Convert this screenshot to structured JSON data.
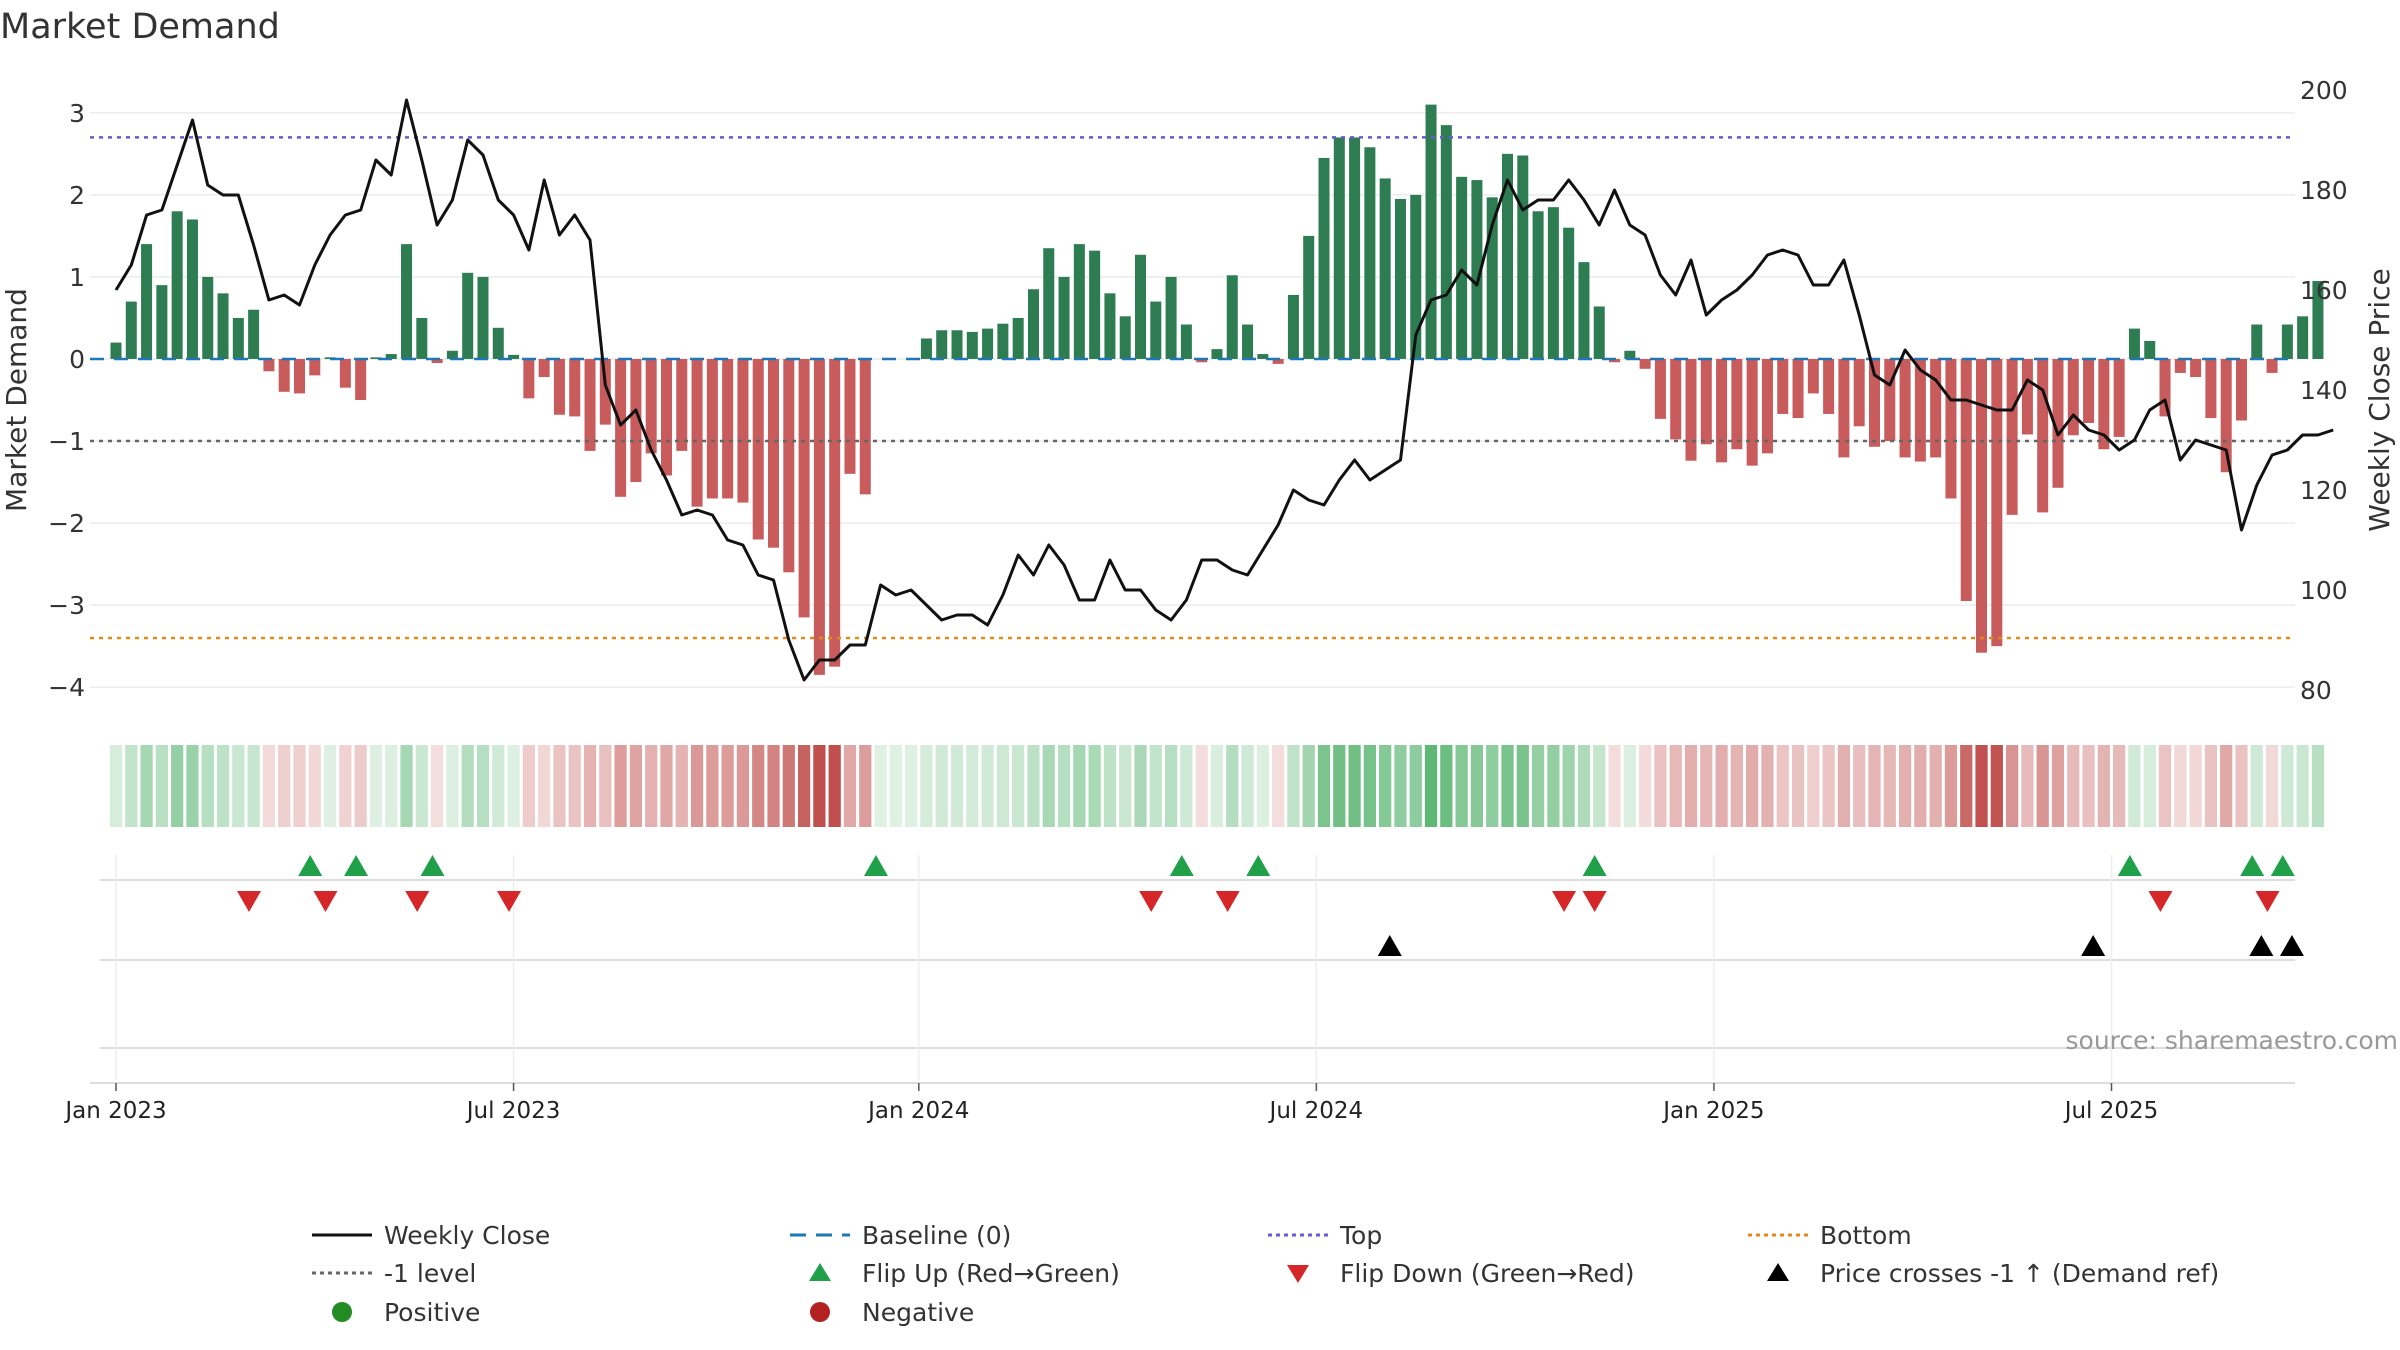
{
  "chart_data": {
    "type": "bar",
    "title": "Market Demand",
    "ylabel_left": "Market Demand",
    "ylabel_right": "Weekly Close Price",
    "ylim_left": [
      -4.4,
      3.4
    ],
    "ylim_right": [
      74,
      202
    ],
    "y_ticks_left": [
      3,
      2,
      1,
      0,
      -1,
      -2,
      -3,
      -4
    ],
    "y_tick_labels_left": [
      "3",
      "2",
      "1",
      "0",
      "−1",
      "−2",
      "−3",
      "−4"
    ],
    "y_ticks_right": [
      200,
      180,
      160,
      140,
      120,
      100,
      80
    ],
    "y_tick_labels_right": [
      "200",
      "180",
      "160",
      "140",
      "120",
      "100",
      "80"
    ],
    "x_ticks": [
      0,
      26,
      52.5,
      78.5,
      104.5,
      130.5
    ],
    "x_tick_labels": [
      "Jan 2023",
      "Jul 2023",
      "Jan 2024",
      "Jul 2024",
      "Jan 2025",
      "Jul 2025"
    ],
    "x_range": [
      -1.7,
      142.5
    ],
    "reference_lines": {
      "top": 2.7,
      "minus_one": -1,
      "bottom": -3.4,
      "baseline": 0
    },
    "series": [
      {
        "name": "Market Demand",
        "kind": "bar",
        "values": [
          0.2,
          0.7,
          1.4,
          0.9,
          1.8,
          1.7,
          1.0,
          0.8,
          0.5,
          0.6,
          -0.15,
          -0.4,
          -0.42,
          -0.2,
          0.02,
          -0.35,
          -0.5,
          0.02,
          0.06,
          1.4,
          0.5,
          -0.05,
          0.1,
          1.05,
          1.0,
          0.38,
          0.05,
          -0.48,
          -0.22,
          -0.68,
          -0.7,
          -1.12,
          -0.8,
          -1.68,
          -1.5,
          -1.15,
          -1.42,
          -1.12,
          -1.8,
          -1.7,
          -1.7,
          -1.75,
          -2.2,
          -2.3,
          -2.6,
          -3.15,
          -3.85,
          -3.75,
          -1.4,
          -1.65,
          0.0,
          0.0,
          0.0,
          0.25,
          0.35,
          0.35,
          0.33,
          0.37,
          0.43,
          0.5,
          0.85,
          1.35,
          1.0,
          1.4,
          1.32,
          0.8,
          0.52,
          1.27,
          0.7,
          1.0,
          0.42,
          -0.04,
          0.12,
          1.02,
          0.42,
          0.06,
          -0.06,
          0.78,
          1.5,
          2.45,
          2.7,
          2.7,
          2.58,
          2.2,
          1.95,
          2.0,
          3.1,
          2.85,
          2.22,
          2.18,
          1.97,
          2.5,
          2.48,
          1.8,
          1.85,
          1.6,
          1.18,
          0.64,
          -0.04,
          0.1,
          -0.12,
          -0.73,
          -0.98,
          -1.24,
          -1.04,
          -1.26,
          -1.1,
          -1.3,
          -1.15,
          -0.67,
          -0.72,
          -0.42,
          -0.67,
          -1.2,
          -0.82,
          -1.07,
          -1.0,
          -1.2,
          -1.25,
          -1.2,
          -1.7,
          -2.95,
          -3.58,
          -3.5,
          -1.9,
          -0.92,
          -1.87,
          -1.57,
          -0.93,
          -0.78,
          -1.1,
          -0.95,
          0.37,
          0.22,
          -0.7,
          -0.17,
          -0.22,
          -0.72,
          -1.38,
          -0.75,
          0.42,
          -0.17,
          0.42,
          0.52,
          0.95
        ]
      },
      {
        "name": "Weekly Close",
        "kind": "line",
        "values": [
          160,
          165,
          175,
          176,
          185,
          194,
          181,
          179,
          179,
          169,
          158,
          159,
          157,
          165,
          171,
          175,
          176,
          186,
          183,
          198,
          186,
          173,
          178,
          190,
          187,
          178,
          175,
          168,
          182,
          171,
          175,
          170,
          141,
          133,
          136,
          128,
          122,
          115,
          116,
          115,
          110,
          109,
          103,
          102,
          90,
          82,
          86,
          86,
          89,
          89,
          101,
          99,
          100,
          97,
          94,
          95,
          95,
          93,
          99,
          107,
          103,
          109,
          105,
          98,
          98,
          106,
          100,
          100,
          96,
          94,
          98,
          106,
          106,
          104,
          103,
          108,
          113,
          120,
          118,
          117,
          122,
          126,
          122,
          124,
          126,
          151,
          158,
          159,
          164,
          161,
          173,
          182,
          176,
          178,
          178,
          182,
          178,
          173,
          180,
          173,
          171,
          163,
          159,
          166,
          155,
          158,
          160,
          163,
          167,
          168,
          167,
          161,
          161,
          166,
          155,
          143,
          141,
          148,
          144,
          142,
          138,
          138,
          137,
          136,
          136,
          142,
          140,
          131,
          135,
          132,
          131,
          128,
          130,
          136,
          138,
          126,
          130,
          129,
          128,
          112,
          121,
          127,
          128,
          131,
          131,
          132
        ]
      }
    ],
    "heat_strip": "Market Demand color strip (green = positive, red = negative)",
    "flip_up_weeks": [
      12.7,
      15.7,
      20.7,
      49.7,
      69.7,
      74.7,
      96.7,
      131.7,
      139.7,
      141.7
    ],
    "flip_down_weeks": [
      8.7,
      13.7,
      19.7,
      25.7,
      67.7,
      72.7,
      94.7,
      96.7,
      133.7,
      140.7
    ],
    "price_cross_weeks": [
      83.3,
      129.3,
      140.3,
      142.3
    ]
  },
  "colors": {
    "positive_bar": "#2e7d52",
    "negative_bar": "#c85c5c",
    "line": "#111111",
    "baseline": "#1f77b4",
    "top": "#6a5acd",
    "minus_one": "#666666",
    "bottom": "#e08a17",
    "flip_up": "#21a04a",
    "flip_down": "#d62728",
    "cross": "#000000",
    "positive_dot": "#228b22",
    "negative_dot": "#b22222"
  },
  "source": "source: sharemaestro.com",
  "legend": [
    {
      "label": "Weekly Close",
      "icon": "solid-line-icon",
      "color": "#111111"
    },
    {
      "label": "Baseline (0)",
      "icon": "dashed-line-icon",
      "color": "#1f77b4"
    },
    {
      "label": "Top",
      "icon": "dotted-line-icon",
      "color": "#6a5acd"
    },
    {
      "label": "Bottom",
      "icon": "dotted-line-icon",
      "color": "#e08a17"
    },
    {
      "label": "-1 level",
      "icon": "dotted-line-icon",
      "color": "#666666"
    },
    {
      "label": "Flip Up (Red→Green)",
      "icon": "triangle-up-icon",
      "color": "#21a04a"
    },
    {
      "label": "Flip Down (Green→Red)",
      "icon": "triangle-down-icon",
      "color": "#d62728"
    },
    {
      "label": "Price crosses -1 ↑ (Demand ref)",
      "icon": "triangle-up-icon",
      "color": "#000000"
    },
    {
      "label": "Positive",
      "icon": "circle-icon",
      "color": "#228b22"
    },
    {
      "label": "Negative",
      "icon": "circle-icon",
      "color": "#b22222"
    }
  ]
}
